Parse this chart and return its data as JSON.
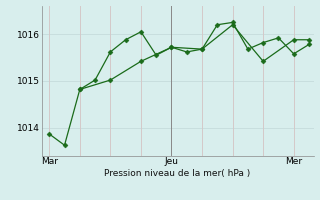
{
  "xlabel": "Pression niveau de la mer( hPa )",
  "background_color": "#d8eeed",
  "grid_color_h": "#c8dede",
  "grid_color_v": "#d4c8c8",
  "line_color": "#1a6b1a",
  "x_ticks": [
    0,
    8,
    16
  ],
  "x_tick_labels": [
    "Mar",
    "Jeu",
    "Mer"
  ],
  "ylim": [
    1013.4,
    1016.6
  ],
  "yticks": [
    1014,
    1015,
    1016
  ],
  "line1_x": [
    0,
    1,
    2,
    3,
    4,
    5,
    6,
    7,
    8,
    9,
    10,
    11,
    12,
    13,
    14,
    15,
    16,
    17
  ],
  "line1_y": [
    1013.87,
    1013.63,
    1014.82,
    1015.02,
    1015.62,
    1015.88,
    1016.05,
    1015.55,
    1015.72,
    1015.62,
    1015.68,
    1016.2,
    1016.25,
    1015.68,
    1015.82,
    1015.92,
    1015.58,
    1015.78
  ],
  "line2_x": [
    2,
    4,
    6,
    8,
    10,
    12,
    14,
    16,
    17
  ],
  "line2_y": [
    1014.82,
    1015.02,
    1015.42,
    1015.72,
    1015.68,
    1016.2,
    1015.42,
    1015.88,
    1015.88
  ],
  "vline_x": 8,
  "vline_color": "#888888",
  "x_max": 17,
  "figw": 3.2,
  "figh": 2.0,
  "dpi": 100
}
